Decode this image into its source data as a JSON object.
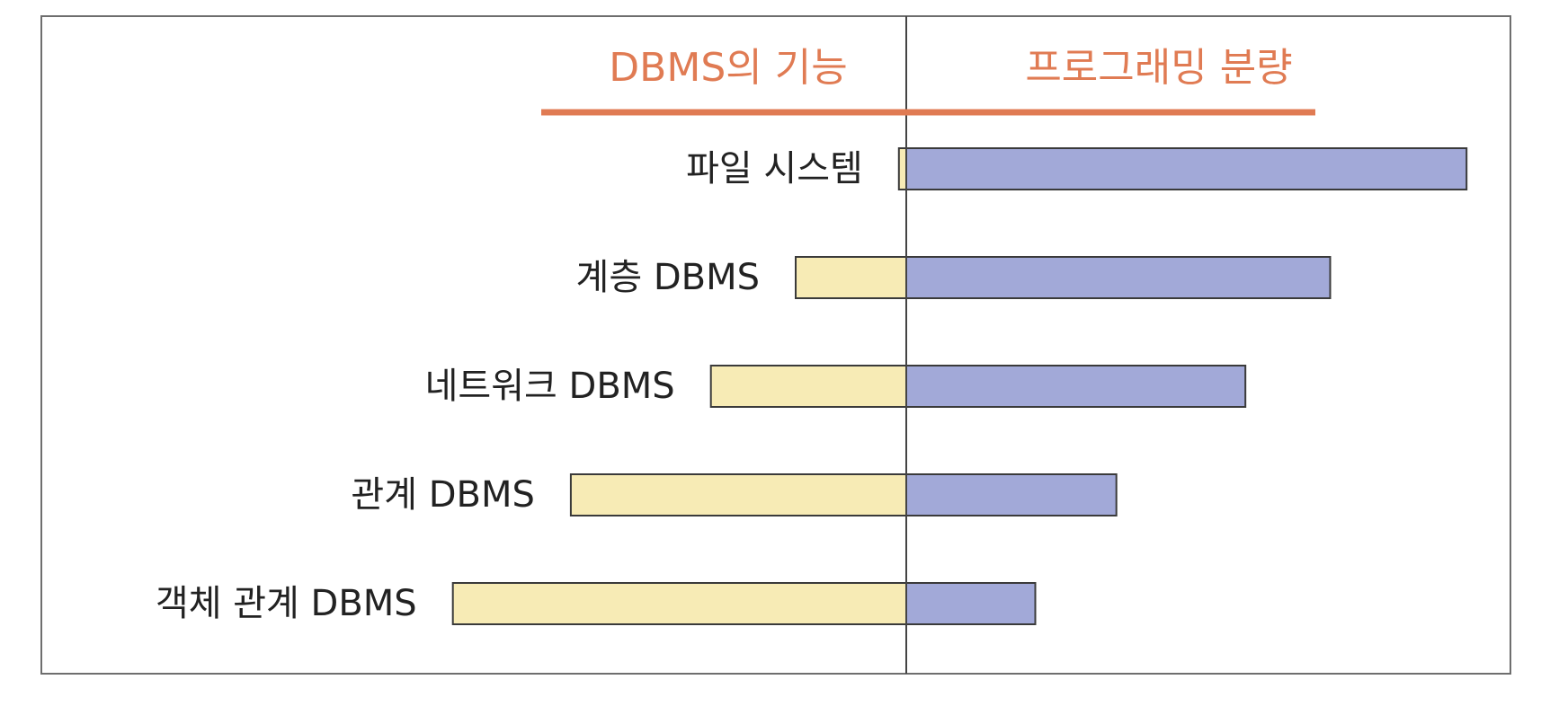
{
  "chart_data": {
    "type": "bar",
    "orientation": "horizontal",
    "layout": "diverging",
    "categories": [
      "파일 시스템",
      "계층 DBMS",
      "네트워크 DBMS",
      "관계 DBMS",
      "객체 관계 DBMS"
    ],
    "series": [
      {
        "name": "DBMS의 기능",
        "side": "left",
        "color": "#f7ebb5",
        "values": [
          2,
          30,
          53,
          91,
          123
        ]
      },
      {
        "name": "프로그래밍 분량",
        "side": "right",
        "color": "#a2a9d8",
        "values": [
          152,
          115,
          92,
          57,
          35
        ]
      }
    ],
    "xlim": [
      -160,
      160
    ],
    "grid": false,
    "legend": "top",
    "header_color": "#e07b53",
    "title": "",
    "xlabel": "",
    "ylabel": ""
  }
}
